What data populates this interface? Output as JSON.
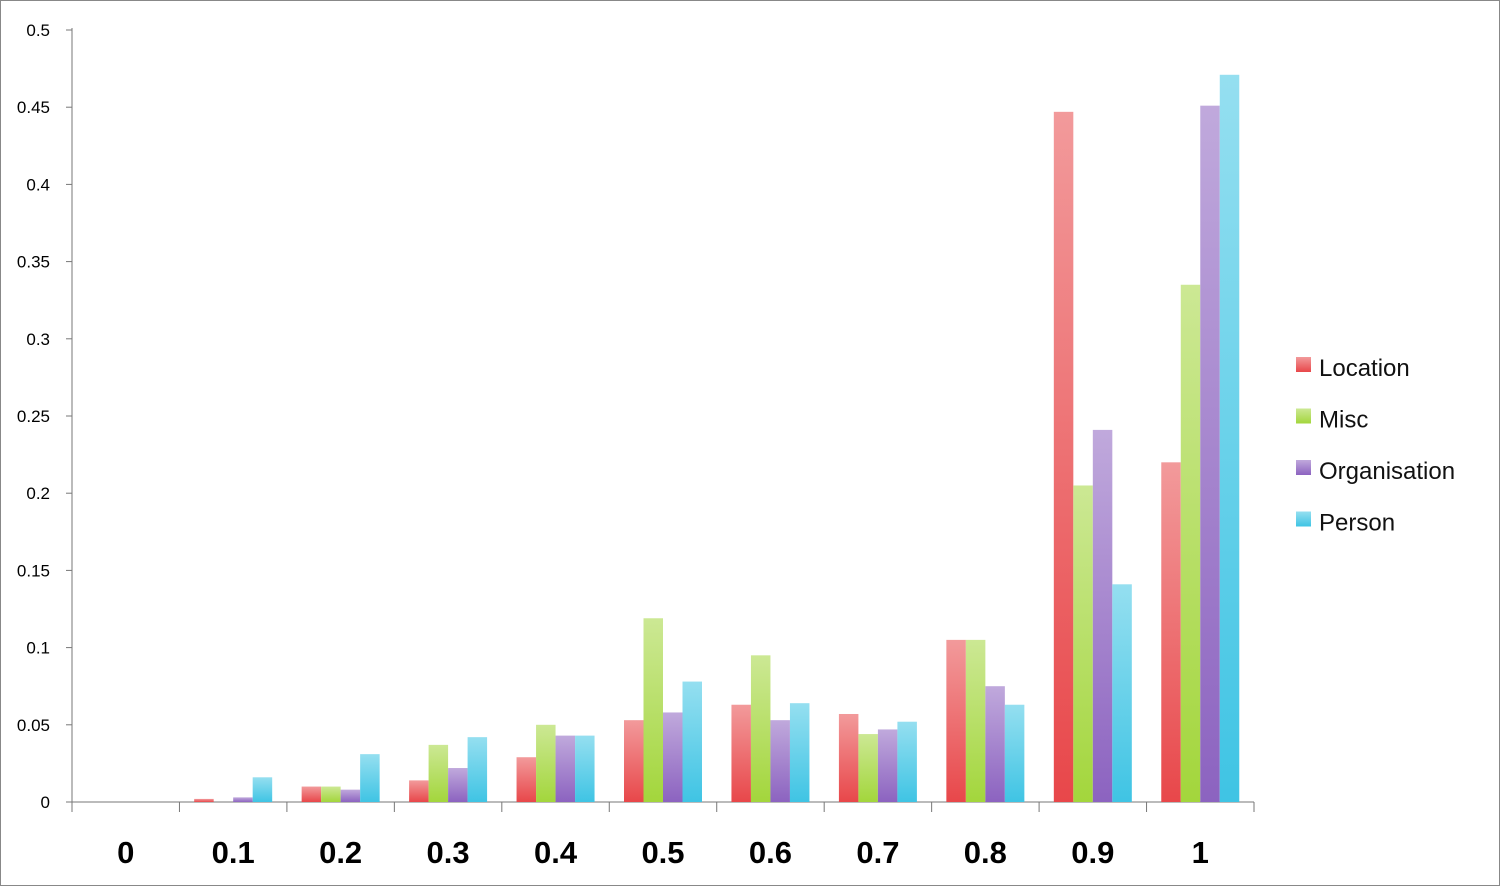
{
  "chart_data": {
    "type": "bar",
    "categories": [
      "0",
      "0.1",
      "0.2",
      "0.3",
      "0.4",
      "0.5",
      "0.6",
      "0.7",
      "0.8",
      "0.9",
      "1"
    ],
    "y_ticks": [
      "0",
      "0.05",
      "0.1",
      "0.15",
      "0.2",
      "0.25",
      "0.3",
      "0.35",
      "0.4",
      "0.45",
      "0.5"
    ],
    "ylim": [
      0,
      0.5
    ],
    "grid": false,
    "legend_position": "right",
    "series": [
      {
        "name": "Location",
        "color": "#e8474a",
        "values": [
          0,
          0.002,
          0.01,
          0.014,
          0.029,
          0.053,
          0.063,
          0.057,
          0.105,
          0.447,
          0.22
        ]
      },
      {
        "name": "Misc",
        "color": "#a3d63c",
        "values": [
          0,
          0,
          0.01,
          0.037,
          0.05,
          0.119,
          0.095,
          0.044,
          0.105,
          0.205,
          0.335
        ]
      },
      {
        "name": "Organisation",
        "color": "#8c63c0",
        "values": [
          0,
          0.003,
          0.008,
          0.022,
          0.043,
          0.058,
          0.053,
          0.047,
          0.075,
          0.241,
          0.451
        ]
      },
      {
        "name": "Person",
        "color": "#3fc4e4",
        "values": [
          0,
          0.016,
          0.031,
          0.042,
          0.043,
          0.078,
          0.064,
          0.052,
          0.063,
          0.141,
          0.471
        ]
      }
    ]
  }
}
